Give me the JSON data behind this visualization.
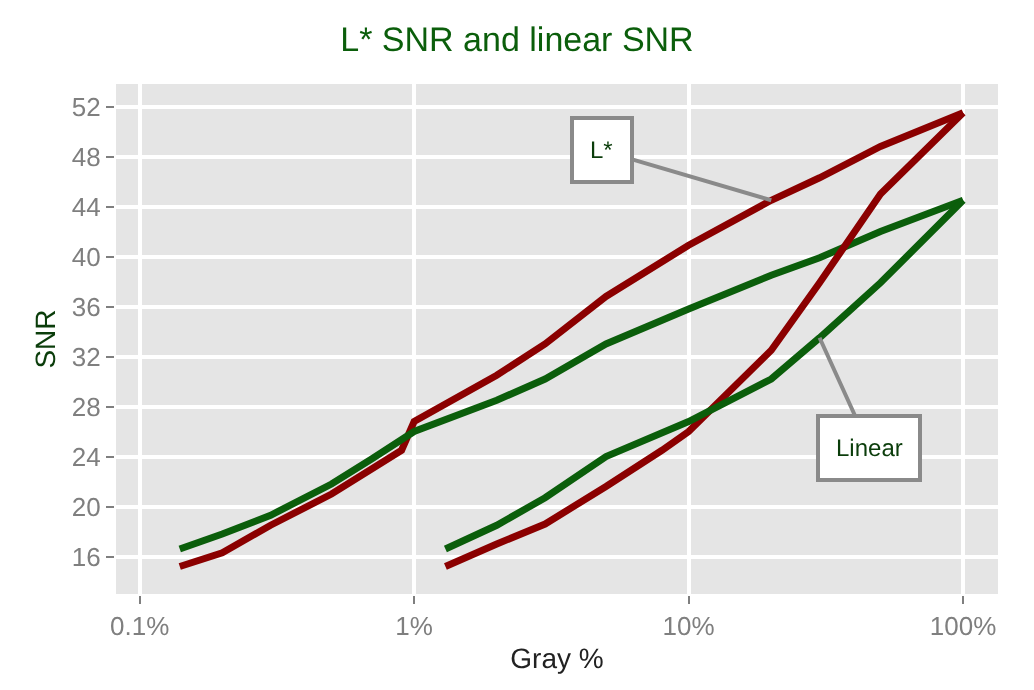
{
  "chart_data": {
    "type": "line",
    "title": "L* SNR and linear SNR",
    "xlabel": "Gray %",
    "ylabel": "SNR",
    "log": "x",
    "grid": true,
    "line_style": "solid",
    "marker": "none",
    "xlim": [
      0.082,
      134
    ],
    "xticks": [
      {
        "value": 0.1,
        "label": "0.1%"
      },
      {
        "value": 1,
        "label": "1%"
      },
      {
        "value": 10,
        "label": "10%"
      },
      {
        "value": 100,
        "label": "100%"
      }
    ],
    "ylim": [
      13,
      53.8
    ],
    "yticks": [
      16,
      20,
      24,
      28,
      32,
      36,
      40,
      44,
      48,
      52
    ],
    "series": [
      {
        "color": "#8b0000",
        "x": [
          0.14,
          0.2,
          0.3,
          0.5,
          0.7,
          0.9,
          1,
          2,
          3,
          5,
          10,
          20,
          30,
          50,
          100
        ],
        "values": [
          15.2,
          16.3,
          18.5,
          21,
          23,
          24.5,
          26.8,
          30.5,
          33,
          36.8,
          40.9,
          44.5,
          46.3,
          48.8,
          51.5
        ]
      },
      {
        "color": "#0b5e0b",
        "x": [
          0.14,
          0.2,
          0.3,
          0.5,
          0.7,
          1,
          2,
          3,
          5,
          10,
          20,
          30,
          50,
          100
        ],
        "values": [
          16.6,
          17.8,
          19.3,
          21.8,
          23.8,
          26,
          28.5,
          30.2,
          33,
          35.8,
          38.5,
          39.9,
          42,
          44.5
        ]
      },
      {
        "color": "#8b0000",
        "x": [
          1.3,
          2,
          3,
          5,
          8,
          10,
          20,
          30,
          50,
          100
        ],
        "values": [
          15.2,
          17,
          18.6,
          21.6,
          24.5,
          26,
          32.5,
          37.9,
          45,
          51.5
        ]
      },
      {
        "color": "#0b5e0b",
        "x": [
          1.3,
          2,
          3,
          5,
          10,
          20,
          30,
          50,
          100
        ],
        "values": [
          16.6,
          18.5,
          20.7,
          24,
          26.8,
          30.2,
          33.5,
          37.9,
          44.5
        ]
      }
    ],
    "annotations": [
      {
        "text": "L*",
        "x": 20,
        "y": 44.5
      },
      {
        "text": "Linear",
        "x": 30,
        "y": 33.5
      }
    ]
  }
}
